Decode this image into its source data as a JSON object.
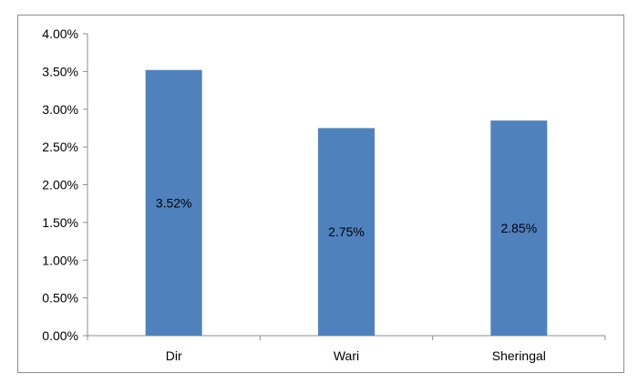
{
  "chart_data": {
    "type": "bar",
    "title": "",
    "xlabel": "",
    "ylabel": "",
    "categories": [
      "Dir",
      "Wari",
      "Sheringal"
    ],
    "values": [
      0.0352,
      0.0275,
      0.0285
    ],
    "data_labels": [
      "3.52%",
      "2.75%",
      "2.85%"
    ],
    "y_ticks": [
      0,
      0.005,
      0.01,
      0.015,
      0.02,
      0.025,
      0.03,
      0.035,
      0.04
    ],
    "y_tick_labels": [
      "0.00%",
      "0.50%",
      "1.00%",
      "1.50%",
      "2.00%",
      "2.50%",
      "3.00%",
      "3.50%",
      "4.00%"
    ],
    "ylim": [
      0,
      0.04
    ],
    "grid": false,
    "legend": "none",
    "bar_color": "#4f81bd"
  }
}
